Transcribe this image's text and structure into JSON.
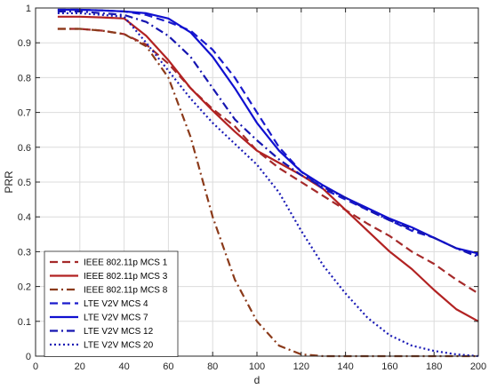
{
  "chart_data": {
    "type": "line",
    "xlabel": "d",
    "ylabel": "PRR",
    "xlim": [
      0,
      200
    ],
    "ylim": [
      0,
      1
    ],
    "xticks": [
      0,
      20,
      40,
      60,
      80,
      100,
      120,
      140,
      160,
      180,
      200
    ],
    "yticks": [
      0,
      0.1,
      0.2,
      0.3,
      0.4,
      0.5,
      0.6,
      0.7,
      0.8,
      0.9,
      1
    ],
    "xtick_labels": [
      "0",
      "20",
      "40",
      "60",
      "80",
      "100",
      "120",
      "140",
      "160",
      "180",
      "200"
    ],
    "ytick_labels": [
      "0",
      "0.1",
      "0.2",
      "0.3",
      "0.4",
      "0.5",
      "0.6",
      "0.7",
      "0.8",
      "0.9",
      "1"
    ],
    "grid": true,
    "legend_position": "bottom-left",
    "series": [
      {
        "name": "IEEE 802.11p MCS 1",
        "color": "#a52a2a",
        "dash": "dashed",
        "x": [
          10,
          20,
          30,
          40,
          50,
          60,
          70,
          80,
          90,
          100,
          110,
          120,
          130,
          140,
          150,
          160,
          170,
          180,
          190,
          200
        ],
        "y": [
          0.94,
          0.94,
          0.935,
          0.925,
          0.895,
          0.84,
          0.77,
          0.71,
          0.66,
          0.59,
          0.54,
          0.5,
          0.46,
          0.42,
          0.38,
          0.345,
          0.3,
          0.265,
          0.22,
          0.18
        ]
      },
      {
        "name": "IEEE 802.11p MCS 3",
        "color": "#b22222",
        "dash": "solid",
        "x": [
          10,
          20,
          30,
          40,
          50,
          60,
          70,
          80,
          90,
          100,
          110,
          120,
          130,
          140,
          150,
          160,
          170,
          180,
          190,
          200
        ],
        "y": [
          0.975,
          0.975,
          0.973,
          0.97,
          0.92,
          0.85,
          0.77,
          0.705,
          0.645,
          0.59,
          0.555,
          0.52,
          0.48,
          0.42,
          0.36,
          0.3,
          0.25,
          0.19,
          0.135,
          0.1
        ]
      },
      {
        "name": "IEEE 802.11p MCS 8",
        "color": "#8b3a1a",
        "dash": "dashdot",
        "x": [
          10,
          20,
          30,
          40,
          50,
          60,
          70,
          80,
          90,
          100,
          110,
          120,
          130,
          140,
          150,
          160,
          170,
          180,
          190,
          200
        ],
        "y": [
          0.94,
          0.94,
          0.935,
          0.925,
          0.89,
          0.8,
          0.63,
          0.4,
          0.22,
          0.1,
          0.03,
          0.005,
          0,
          0,
          0,
          0,
          0,
          0,
          0,
          0
        ]
      },
      {
        "name": "LTE V2V MCS 4",
        "color": "#1a1acc",
        "dash": "dashed",
        "x": [
          10,
          20,
          30,
          40,
          50,
          60,
          70,
          80,
          90,
          100,
          110,
          120,
          130,
          140,
          150,
          160,
          170,
          180,
          190,
          200
        ],
        "y": [
          0.995,
          0.995,
          0.993,
          0.99,
          0.98,
          0.96,
          0.935,
          0.88,
          0.8,
          0.7,
          0.6,
          0.53,
          0.48,
          0.45,
          0.42,
          0.39,
          0.36,
          0.34,
          0.31,
          0.29
        ]
      },
      {
        "name": "LTE V2V MCS 7",
        "color": "#1010d0",
        "dash": "solid",
        "x": [
          10,
          20,
          30,
          40,
          50,
          60,
          70,
          80,
          90,
          100,
          110,
          120,
          130,
          140,
          150,
          160,
          170,
          180,
          190,
          200
        ],
        "y": [
          0.995,
          0.995,
          0.993,
          0.99,
          0.985,
          0.97,
          0.93,
          0.86,
          0.77,
          0.67,
          0.59,
          0.53,
          0.49,
          0.455,
          0.425,
          0.395,
          0.37,
          0.34,
          0.31,
          0.295
        ]
      },
      {
        "name": "LTE V2V MCS 12",
        "color": "#1515b0",
        "dash": "dashdot",
        "x": [
          10,
          20,
          30,
          40,
          50,
          60,
          70,
          80,
          90,
          100,
          110,
          120,
          130,
          140,
          150,
          160,
          170,
          180,
          190,
          200
        ],
        "y": [
          0.99,
          0.99,
          0.985,
          0.98,
          0.96,
          0.92,
          0.86,
          0.77,
          0.68,
          0.62,
          0.565,
          0.52,
          0.485,
          0.455,
          0.42,
          0.39,
          0.365,
          0.34,
          0.31,
          0.285
        ]
      },
      {
        "name": "LTE V2V MCS 20",
        "color": "#1a1ab5",
        "dash": "dotted",
        "x": [
          10,
          20,
          30,
          40,
          50,
          60,
          70,
          80,
          90,
          100,
          110,
          120,
          130,
          140,
          150,
          160,
          170,
          180,
          190,
          200
        ],
        "y": [
          0.985,
          0.985,
          0.98,
          0.975,
          0.9,
          0.82,
          0.74,
          0.67,
          0.61,
          0.55,
          0.47,
          0.36,
          0.26,
          0.18,
          0.11,
          0.06,
          0.03,
          0.015,
          0.005,
          0
        ]
      }
    ]
  }
}
